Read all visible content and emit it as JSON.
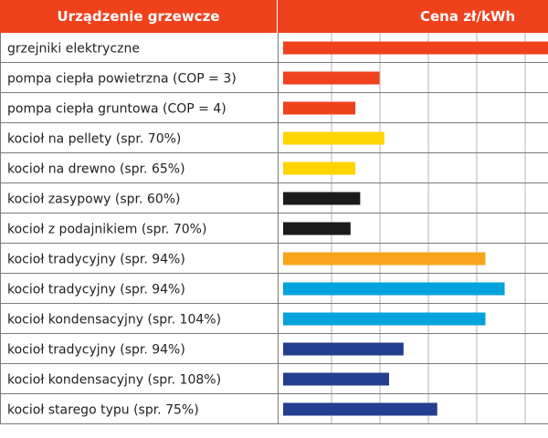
{
  "header": {
    "device_label": "Urządzenie grzewcze",
    "price_label": "Cena zł/kWh"
  },
  "colors": {
    "header_bg": "#f0411d",
    "grid": "#b5b5b5",
    "border": "#7a7a7a"
  },
  "chart_data": {
    "type": "bar",
    "orientation": "horizontal",
    "xlabel": "Cena zł/kWh",
    "ylabel": "Urządzenie grzewcze",
    "xlim": [
      0,
      0.55
    ],
    "grid": true,
    "categories": [
      "grzejniki elektryczne",
      "pompa ciepła powietrzna (COP = 3)",
      "pompa ciepła gruntowa (COP = 4)",
      "kocioł na pellety (spr. 70%)",
      "kocioł na drewno (spr. 65%)",
      "kocioł zasypowy (spr. 60%)",
      "kocioł z podajnikiem (spr. 70%)",
      "kocioł tradycyjny (spr. 94%)",
      "kocioł tradycyjny (spr. 94%)",
      "kocioł kondensacyjny (spr. 104%)",
      "kocioł tradycyjny (spr. 94%)",
      "kocioł kondensacyjny (spr. 108%)",
      "kocioł starego typu (spr. 75%)"
    ],
    "values": [
      0.55,
      0.2,
      0.15,
      0.21,
      0.15,
      0.16,
      0.14,
      0.42,
      0.46,
      0.42,
      0.25,
      0.22,
      0.32
    ],
    "bar_colors": [
      "#f0411d",
      "#f0411d",
      "#f0411d",
      "#ffd400",
      "#ffd400",
      "#1b1b1b",
      "#1b1b1b",
      "#f6a41a",
      "#00a3dc",
      "#00a3dc",
      "#233e8f",
      "#233e8f",
      "#233e8f"
    ]
  }
}
